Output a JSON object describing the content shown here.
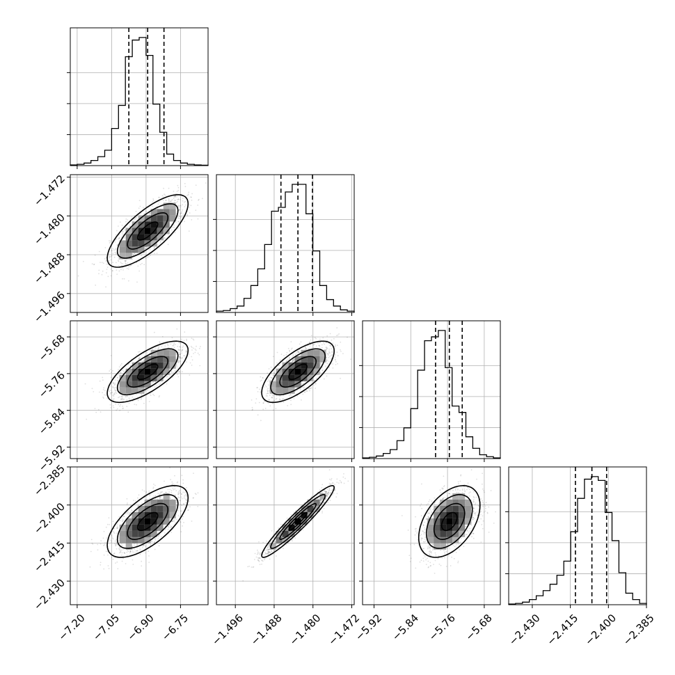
{
  "chart_data": {
    "type": "corner",
    "title": "",
    "grid": true,
    "params": [
      {
        "median": -6.893,
        "q16": -6.975,
        "q84": -6.822,
        "range": [
          -7.23,
          -6.63
        ],
        "ticks": [
          -7.2,
          -7.05,
          -6.9,
          -6.75
        ],
        "tick_labels": [
          "−7.20",
          "−7.05",
          "−6.90",
          "−6.75"
        ],
        "hist": [
          0.005,
          0.01,
          0.02,
          0.04,
          0.07,
          0.12,
          0.29,
          0.47,
          0.85,
          0.98,
          1.0,
          0.86,
          0.48,
          0.26,
          0.09,
          0.04,
          0.02,
          0.01,
          0.005,
          0.003
        ]
      },
      {
        "median": -1.4831,
        "q16": -1.4866,
        "q84": -1.4801,
        "range": [
          -1.4999,
          -1.4715
        ],
        "ticks": [
          -1.496,
          -1.488,
          -1.48,
          -1.472
        ],
        "tick_labels": [
          "−1.496",
          "−1.488",
          "−1.480",
          "−1.472"
        ],
        "hist": [
          0.01,
          0.015,
          0.03,
          0.05,
          0.11,
          0.21,
          0.34,
          0.53,
          0.79,
          0.82,
          0.94,
          1.0,
          1.0,
          0.77,
          0.48,
          0.21,
          0.1,
          0.05,
          0.02,
          0.01
        ]
      },
      {
        "median": -5.756,
        "q16": -5.786,
        "q84": -5.728,
        "range": [
          -5.945,
          -5.645
        ],
        "ticks": [
          -5.92,
          -5.84,
          -5.76,
          -5.68
        ],
        "tick_labels": [
          "−5.92",
          "−5.84",
          "−5.76",
          "−5.68"
        ],
        "hist": [
          0.005,
          0.01,
          0.02,
          0.04,
          0.07,
          0.14,
          0.24,
          0.39,
          0.69,
          0.92,
          0.95,
          1.0,
          0.71,
          0.41,
          0.36,
          0.17,
          0.08,
          0.03,
          0.015,
          0.005
        ]
      },
      {
        "median": -2.4065,
        "q16": -2.413,
        "q84": -2.4007,
        "range": [
          -2.4393,
          -2.385
        ],
        "ticks": [
          -2.43,
          -2.415,
          -2.4,
          -2.385
        ],
        "tick_labels": [
          "−2.430",
          "−2.415",
          "−2.400",
          "−2.385"
        ],
        "hist": [
          0.005,
          0.01,
          0.02,
          0.04,
          0.07,
          0.11,
          0.16,
          0.23,
          0.34,
          0.57,
          0.83,
          0.98,
          1.0,
          0.97,
          0.72,
          0.5,
          0.25,
          0.09,
          0.04,
          0.01
        ]
      }
    ],
    "correlations": {
      "1_0": 0.75,
      "2_0": 0.7,
      "2_1": 0.68,
      "3_0": 0.66,
      "3_1": 0.95,
      "3_2": 0.45
    }
  }
}
